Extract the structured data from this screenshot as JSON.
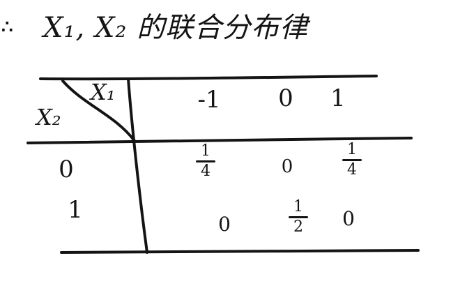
{
  "title": {
    "marker": "∴",
    "text": "X₁, X₂ 的联合分布律"
  },
  "table": {
    "corner": {
      "col_var": "X₁",
      "row_var": "X₂"
    },
    "columns": [
      "-1",
      "0",
      "1"
    ],
    "rows": [
      {
        "label": "0",
        "cells": [
          {
            "num": "1",
            "den": "4"
          },
          {
            "value": "0"
          },
          {
            "num": "1",
            "den": "4"
          }
        ]
      },
      {
        "label": "1",
        "cells": [
          {
            "value": "0"
          },
          {
            "num": "1",
            "den": "2"
          },
          {
            "value": "0"
          }
        ]
      }
    ]
  },
  "colors": {
    "ink": "#141414",
    "paper": "#ffffff"
  }
}
